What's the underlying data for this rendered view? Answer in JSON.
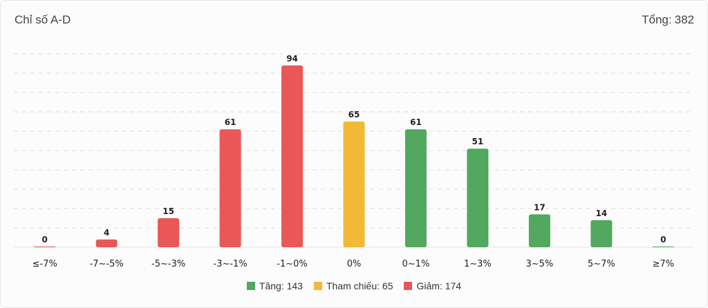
{
  "header": {
    "title": "Chỉ số A-D",
    "total_label": "Tổng:",
    "total_value": "382"
  },
  "colors": {
    "up": "#52a85e",
    "ref": "#f2b935",
    "down": "#e95757"
  },
  "legend": [
    {
      "label": "Tăng: 143",
      "color_key": "up"
    },
    {
      "label": "Tham chiếu: 65",
      "color_key": "ref"
    },
    {
      "label": "Giảm: 174",
      "color_key": "down"
    }
  ],
  "chart_data": {
    "type": "bar",
    "categories": [
      "≤-7%",
      "-7~-5%",
      "-5~-3%",
      "-3~-1%",
      "-1~0%",
      "0%",
      "0~1%",
      "1~3%",
      "3~5%",
      "5~7%",
      "≥7%"
    ],
    "values": [
      0,
      4,
      15,
      61,
      94,
      65,
      61,
      51,
      17,
      14,
      0
    ],
    "bar_colors": [
      "down",
      "down",
      "down",
      "down",
      "down",
      "ref",
      "up",
      "up",
      "up",
      "up",
      "up"
    ],
    "ylim": [
      0,
      100
    ],
    "grid": true,
    "legend_position": "bottom"
  }
}
